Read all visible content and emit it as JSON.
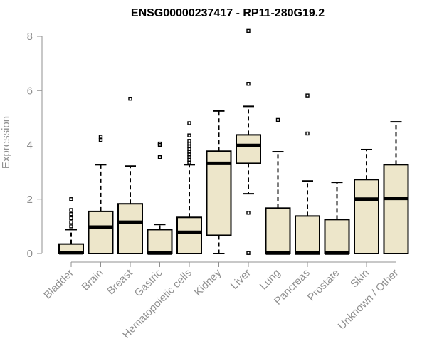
{
  "chart_data": {
    "type": "boxplot",
    "title": "ENSG00000237417 - RP11-280G19.2",
    "ylabel": "Expression",
    "ylim": [
      0,
      8
    ],
    "yticks": [
      "0",
      "2",
      "4",
      "6",
      "8"
    ],
    "categories": [
      "Bladder",
      "Brain",
      "Breast",
      "Gastric",
      "Hematopoietic cells",
      "Kidney",
      "Liver",
      "Lung",
      "Pancreas",
      "Prostate",
      "Skin",
      "Unknown / Other"
    ],
    "boxes": [
      {
        "min": 0,
        "q1": 0,
        "median": 0.03,
        "q3": 0.35,
        "max": 0.88,
        "outliers": [
          1.0,
          1.15,
          1.3,
          1.45,
          1.6,
          2.0
        ]
      },
      {
        "min": 0,
        "q1": 0,
        "median": 0.97,
        "q3": 1.55,
        "max": 3.27,
        "outliers": [
          4.18,
          4.3
        ]
      },
      {
        "min": 0,
        "q1": 0,
        "median": 1.15,
        "q3": 1.83,
        "max": 3.22,
        "outliers": [
          5.7
        ]
      },
      {
        "min": 0,
        "q1": 0,
        "median": 0.02,
        "q3": 0.88,
        "max": 1.07,
        "outliers": [
          3.55,
          4.0,
          4.05
        ]
      },
      {
        "min": 0,
        "q1": 0,
        "median": 0.78,
        "q3": 1.33,
        "max": 3.27,
        "outliers": [
          3.35,
          3.45,
          3.55,
          3.65,
          3.75,
          3.85,
          3.95,
          4.05,
          4.15,
          4.35,
          4.8
        ]
      },
      {
        "min": 0,
        "q1": 0.67,
        "median": 3.32,
        "q3": 3.77,
        "max": 5.25,
        "outliers": []
      },
      {
        "min": 2.2,
        "q1": 3.32,
        "median": 3.98,
        "q3": 4.37,
        "max": 5.42,
        "outliers": [
          0.02,
          1.5,
          6.25,
          8.2
        ]
      },
      {
        "min": 0,
        "q1": 0,
        "median": 0.02,
        "q3": 1.67,
        "max": 3.75,
        "outliers": [
          4.92
        ]
      },
      {
        "min": 0,
        "q1": 0,
        "median": 0.02,
        "q3": 1.38,
        "max": 2.67,
        "outliers": [
          4.42,
          5.82
        ]
      },
      {
        "min": 0,
        "q1": 0,
        "median": 0.02,
        "q3": 1.25,
        "max": 2.62,
        "outliers": []
      },
      {
        "min": 0,
        "q1": 0,
        "median": 2.0,
        "q3": 2.72,
        "max": 3.83,
        "outliers": []
      },
      {
        "min": 0,
        "q1": 0,
        "median": 2.03,
        "q3": 3.27,
        "max": 4.85,
        "outliers": []
      }
    ]
  }
}
